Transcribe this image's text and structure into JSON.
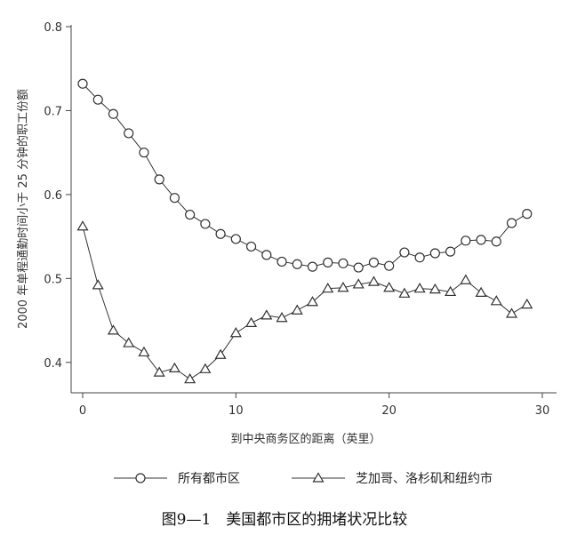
{
  "caption": "图9—1　美国都市区的拥堵状况比较",
  "chart_data": {
    "type": "line",
    "title": "",
    "xlabel": "到中央商务区的距离（英里）",
    "ylabel": "2000 年单程通勤时间小于 25 分钟的职工份额",
    "xlim": [
      0,
      30
    ],
    "ylim": [
      0.35,
      0.8
    ],
    "xticks": [
      0,
      10,
      20,
      30
    ],
    "yticks": [
      0.4,
      0.5,
      0.6,
      0.7,
      0.8
    ],
    "ytick_labels": [
      "0.4",
      "0.5",
      "0.6",
      "0.7",
      "0.8"
    ],
    "grid": false,
    "legend_position": "bottom",
    "series": [
      {
        "name": "所有都市区",
        "marker": "circle",
        "x": [
          0,
          1,
          2,
          3,
          4,
          5,
          6,
          7,
          8,
          9,
          10,
          11,
          12,
          13,
          14,
          15,
          16,
          17,
          18,
          19,
          20,
          21,
          22,
          23,
          24,
          25,
          26,
          27,
          28,
          29
        ],
        "values": [
          0.732,
          0.713,
          0.696,
          0.673,
          0.65,
          0.618,
          0.596,
          0.576,
          0.565,
          0.553,
          0.547,
          0.538,
          0.528,
          0.52,
          0.517,
          0.514,
          0.519,
          0.518,
          0.513,
          0.519,
          0.515,
          0.531,
          0.525,
          0.53,
          0.532,
          0.545,
          0.546,
          0.544,
          0.566,
          0.577
        ]
      },
      {
        "name": "芝加哥、洛杉矶和纽约市",
        "marker": "triangle",
        "x": [
          0,
          1,
          2,
          3,
          4,
          5,
          6,
          7,
          8,
          9,
          10,
          11,
          12,
          13,
          14,
          15,
          16,
          17,
          18,
          19,
          20,
          21,
          22,
          23,
          24,
          25,
          26,
          27,
          28,
          29
        ],
        "values": [
          0.562,
          0.492,
          0.438,
          0.423,
          0.412,
          0.388,
          0.393,
          0.38,
          0.392,
          0.409,
          0.435,
          0.447,
          0.456,
          0.453,
          0.462,
          0.472,
          0.488,
          0.489,
          0.493,
          0.496,
          0.489,
          0.482,
          0.488,
          0.487,
          0.484,
          0.498,
          0.483,
          0.473,
          0.458,
          0.469
        ]
      }
    ]
  }
}
